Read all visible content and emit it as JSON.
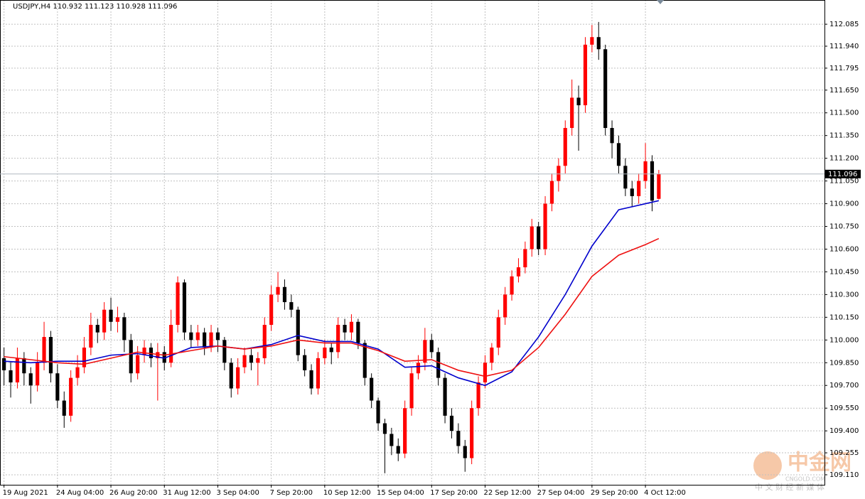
{
  "chart_data": {
    "type": "candlestick",
    "title": "USDJPY,H4  110.932 111.123 110.928 111.096",
    "up_color": "#ff0000",
    "down_color": "#000000",
    "grid": true,
    "ylim": [
      109.044,
      112.245
    ],
    "yticks": [
      {
        "value": 112.085,
        "label": "112.085"
      },
      {
        "value": 111.94,
        "label": "111.940"
      },
      {
        "value": 111.795,
        "label": "111.795"
      },
      {
        "value": 111.65,
        "label": "111.650"
      },
      {
        "value": 111.5,
        "label": "111.500"
      },
      {
        "value": 111.35,
        "label": "111.350"
      },
      {
        "value": 111.2,
        "label": "111.200"
      },
      {
        "value": 111.05,
        "label": "111.050"
      },
      {
        "value": 110.9,
        "label": "110.900"
      },
      {
        "value": 110.75,
        "label": "110.750"
      },
      {
        "value": 110.6,
        "label": "110.600"
      },
      {
        "value": 110.45,
        "label": "110.450"
      },
      {
        "value": 110.3,
        "label": "110.300"
      },
      {
        "value": 110.15,
        "label": "110.150"
      },
      {
        "value": 110.0,
        "label": "110.000"
      },
      {
        "value": 109.85,
        "label": "109.850"
      },
      {
        "value": 109.7,
        "label": "109.700"
      },
      {
        "value": 109.55,
        "label": "109.550"
      },
      {
        "value": 109.4,
        "label": "109.400"
      },
      {
        "value": 109.255,
        "label": "109.255"
      },
      {
        "value": 109.11,
        "label": "109.110"
      }
    ],
    "xlim": [
      -0.6,
      122.8
    ],
    "xticks": [
      {
        "value": 0,
        "label": "19 Aug 2021"
      },
      {
        "value": 8,
        "label": "24 Aug 04:00"
      },
      {
        "value": 16,
        "label": "26 Aug 20:00"
      },
      {
        "value": 24,
        "label": "31 Aug 12:00"
      },
      {
        "value": 32,
        "label": "3 Sep 04:00"
      },
      {
        "value": 40,
        "label": "7 Sep 20:00"
      },
      {
        "value": 48,
        "label": "10 Sep 12:00"
      },
      {
        "value": 56,
        "label": "15 Sep 04:00"
      },
      {
        "value": 64,
        "label": "17 Sep 20:00"
      },
      {
        "value": 72,
        "label": "22 Sep 12:00"
      },
      {
        "value": 80,
        "label": "27 Sep 04:00"
      },
      {
        "value": 88,
        "label": "29 Sep 20:00"
      },
      {
        "value": 96,
        "label": "4 Oct 12:00"
      }
    ],
    "last_price": 111.096,
    "candles": [
      [
        109.88,
        109.95,
        109.7,
        109.8
      ],
      [
        109.8,
        109.86,
        109.62,
        109.72
      ],
      [
        109.72,
        109.95,
        109.68,
        109.88
      ],
      [
        109.88,
        109.92,
        109.7,
        109.78
      ],
      [
        109.78,
        109.82,
        109.58,
        109.7
      ],
      [
        109.7,
        109.92,
        109.66,
        109.85
      ],
      [
        109.85,
        110.12,
        109.8,
        110.02
      ],
      [
        110.02,
        110.06,
        109.72,
        109.78
      ],
      [
        109.78,
        109.84,
        109.55,
        109.6
      ],
      [
        109.6,
        109.66,
        109.42,
        109.5
      ],
      [
        109.5,
        109.8,
        109.46,
        109.75
      ],
      [
        109.75,
        109.9,
        109.7,
        109.82
      ],
      [
        109.82,
        110.02,
        109.78,
        109.95
      ],
      [
        109.95,
        110.18,
        109.9,
        110.1
      ],
      [
        110.1,
        110.14,
        109.98,
        110.05
      ],
      [
        110.05,
        110.25,
        110.0,
        110.2
      ],
      [
        110.2,
        110.28,
        110.06,
        110.12
      ],
      [
        110.12,
        110.22,
        110.05,
        110.15
      ],
      [
        110.15,
        110.18,
        109.92,
        110.0
      ],
      [
        110.0,
        110.04,
        109.72,
        109.78
      ],
      [
        109.78,
        109.96,
        109.74,
        109.9
      ],
      [
        109.9,
        110.0,
        109.85,
        109.95
      ],
      [
        109.95,
        109.98,
        109.82,
        109.88
      ],
      [
        109.88,
        109.98,
        109.6,
        109.92
      ],
      [
        109.92,
        109.96,
        109.8,
        109.85
      ],
      [
        109.85,
        110.2,
        109.82,
        110.1
      ],
      [
        110.1,
        110.42,
        110.05,
        110.38
      ],
      [
        110.38,
        110.4,
        110.0,
        110.05
      ],
      [
        110.05,
        110.1,
        109.95,
        110.0
      ],
      [
        110.0,
        110.1,
        109.96,
        110.05
      ],
      [
        110.05,
        110.08,
        109.9,
        109.95
      ],
      [
        109.95,
        110.1,
        109.92,
        110.05
      ],
      [
        110.05,
        110.08,
        109.92,
        110.0
      ],
      [
        110.0,
        110.02,
        109.8,
        109.85
      ],
      [
        109.85,
        109.88,
        109.62,
        109.68
      ],
      [
        109.68,
        109.88,
        109.64,
        109.82
      ],
      [
        109.82,
        109.95,
        109.78,
        109.9
      ],
      [
        109.9,
        109.94,
        109.8,
        109.85
      ],
      [
        109.85,
        109.92,
        109.7,
        109.88
      ],
      [
        109.88,
        110.15,
        109.84,
        110.1
      ],
      [
        110.1,
        110.36,
        110.06,
        110.3
      ],
      [
        110.3,
        110.45,
        110.25,
        110.35
      ],
      [
        110.35,
        110.4,
        110.2,
        110.25
      ],
      [
        110.25,
        110.3,
        110.15,
        110.2
      ],
      [
        110.2,
        110.22,
        109.86,
        109.9
      ],
      [
        109.9,
        109.94,
        109.76,
        109.8
      ],
      [
        109.8,
        109.84,
        109.64,
        109.68
      ],
      [
        109.68,
        109.92,
        109.64,
        109.88
      ],
      [
        109.88,
        110.0,
        109.84,
        109.95
      ],
      [
        109.95,
        109.98,
        109.84,
        109.92
      ],
      [
        109.92,
        110.15,
        109.88,
        110.1
      ],
      [
        110.1,
        110.14,
        110.0,
        110.05
      ],
      [
        110.05,
        110.17,
        110.0,
        110.12
      ],
      [
        110.12,
        110.14,
        109.94,
        109.98
      ],
      [
        109.98,
        110.0,
        109.7,
        109.75
      ],
      [
        109.75,
        109.78,
        109.55,
        109.6
      ],
      [
        109.6,
        109.62,
        109.4,
        109.45
      ],
      [
        109.45,
        109.48,
        109.12,
        109.38
      ],
      [
        109.38,
        109.42,
        109.24,
        109.3
      ],
      [
        109.3,
        109.35,
        109.2,
        109.25
      ],
      [
        109.25,
        109.6,
        109.22,
        109.55
      ],
      [
        109.55,
        109.82,
        109.5,
        109.78
      ],
      [
        109.78,
        109.9,
        109.74,
        109.85
      ],
      [
        109.85,
        110.08,
        109.8,
        110.0
      ],
      [
        110.0,
        110.04,
        109.88,
        109.92
      ],
      [
        109.92,
        109.95,
        109.7,
        109.75
      ],
      [
        109.75,
        109.78,
        109.45,
        109.5
      ],
      [
        109.5,
        109.55,
        109.35,
        109.4
      ],
      [
        109.4,
        109.45,
        109.25,
        109.3
      ],
      [
        109.3,
        109.34,
        109.13,
        109.22
      ],
      [
        109.22,
        109.6,
        109.18,
        109.55
      ],
      [
        109.55,
        109.76,
        109.5,
        109.72
      ],
      [
        109.72,
        109.9,
        109.68,
        109.85
      ],
      [
        109.85,
        109.98,
        109.8,
        109.95
      ],
      [
        109.95,
        110.2,
        109.9,
        110.15
      ],
      [
        110.15,
        110.35,
        110.1,
        110.3
      ],
      [
        110.3,
        110.46,
        110.26,
        110.42
      ],
      [
        110.42,
        110.54,
        110.38,
        110.48
      ],
      [
        110.48,
        110.65,
        110.44,
        110.6
      ],
      [
        110.6,
        110.8,
        110.55,
        110.75
      ],
      [
        110.75,
        110.78,
        110.56,
        110.6
      ],
      [
        110.6,
        110.95,
        110.56,
        110.9
      ],
      [
        110.9,
        111.1,
        110.85,
        111.05
      ],
      [
        111.05,
        111.2,
        110.98,
        111.15
      ],
      [
        111.15,
        111.45,
        111.1,
        111.4
      ],
      [
        111.4,
        111.72,
        111.35,
        111.6
      ],
      [
        111.6,
        111.68,
        111.25,
        111.55
      ],
      [
        111.55,
        112.0,
        111.5,
        111.95
      ],
      [
        111.95,
        112.08,
        111.9,
        112.0
      ],
      [
        112.0,
        112.1,
        111.85,
        111.92
      ],
      [
        111.92,
        111.95,
        111.35,
        111.4
      ],
      [
        111.4,
        111.45,
        111.2,
        111.3
      ],
      [
        111.3,
        111.35,
        111.1,
        111.15
      ],
      [
        111.15,
        111.2,
        110.95,
        111.0
      ],
      [
        111.0,
        111.05,
        110.88,
        110.95
      ],
      [
        110.95,
        111.1,
        110.9,
        111.05
      ],
      [
        111.05,
        111.3,
        111.0,
        111.18
      ],
      [
        111.18,
        111.22,
        110.85,
        110.92
      ],
      [
        110.932,
        111.123,
        110.928,
        111.096
      ]
    ],
    "series": [
      {
        "color": "#0000cc",
        "x": [
          0,
          4,
          8,
          12,
          16,
          20,
          24,
          28,
          32,
          36,
          40,
          44,
          48,
          52,
          56,
          60,
          64,
          68,
          72,
          76,
          80,
          84,
          88,
          92,
          96,
          98
        ],
        "values": [
          109.86,
          109.85,
          109.86,
          109.86,
          109.9,
          109.91,
          109.88,
          109.95,
          109.96,
          109.94,
          109.97,
          110.03,
          109.99,
          109.99,
          109.94,
          109.82,
          109.83,
          109.75,
          109.7,
          109.79,
          110.02,
          110.3,
          110.62,
          110.86,
          110.9,
          110.92
        ]
      },
      {
        "color": "#ee1111",
        "x": [
          0,
          4,
          8,
          12,
          16,
          20,
          24,
          28,
          32,
          36,
          40,
          44,
          48,
          52,
          56,
          60,
          64,
          68,
          72,
          76,
          80,
          84,
          88,
          92,
          96,
          98
        ],
        "values": [
          109.89,
          109.87,
          109.85,
          109.84,
          109.88,
          109.92,
          109.9,
          109.93,
          109.96,
          109.94,
          109.96,
          110.0,
          109.98,
          109.98,
          109.93,
          109.86,
          109.87,
          109.8,
          109.76,
          109.8,
          109.95,
          110.17,
          110.42,
          110.56,
          110.63,
          110.67
        ]
      }
    ],
    "watermark": {
      "title": "中金网",
      "site": "CNGOLD.COM",
      "slogan": "中 文 财 经 新 媒 体"
    }
  }
}
